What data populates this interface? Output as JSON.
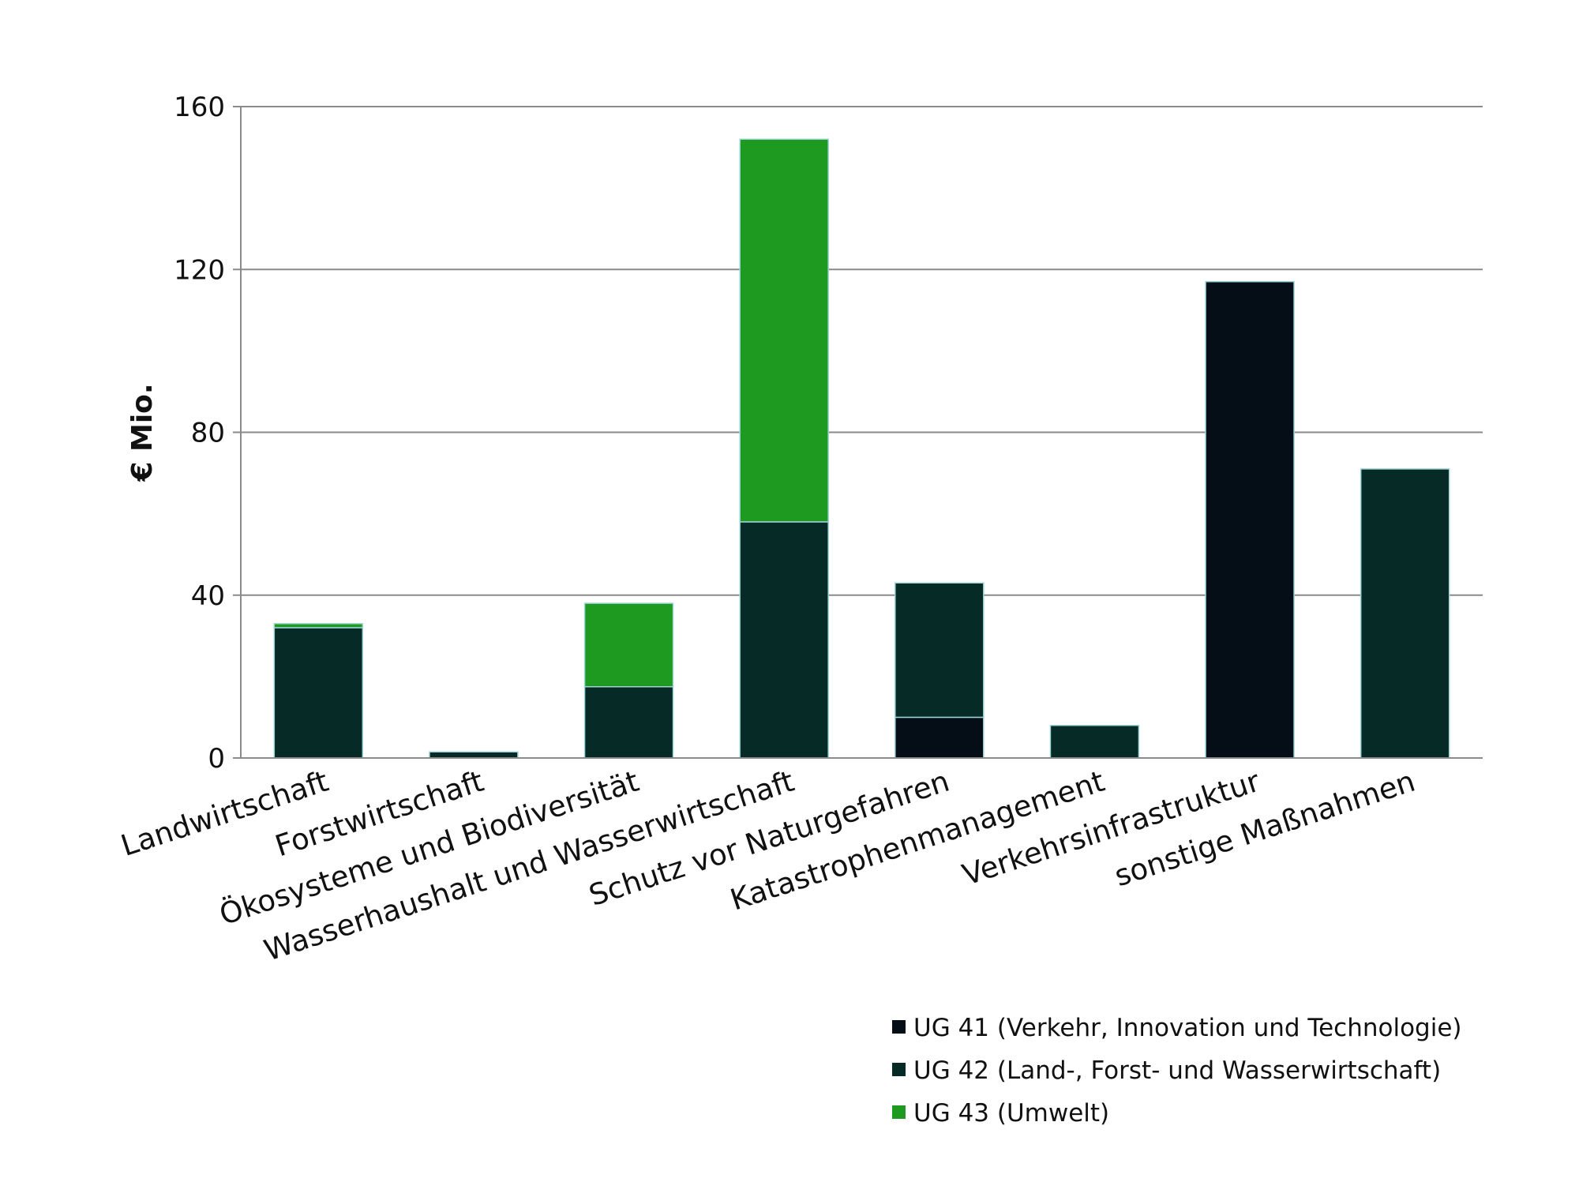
{
  "chart_data": {
    "type": "bar",
    "stacked": true,
    "ylabel": "€ Mio.",
    "xlabel": "",
    "ylim": [
      0,
      160
    ],
    "yticks": [
      "0",
      "40",
      "80",
      "120",
      "160"
    ],
    "grid": true,
    "legend_position": "bottom-right",
    "categories": [
      "Landwirtschaft",
      "Forstwirtschaft",
      "Ökosysteme und Biodiversität",
      "Wasserhaushalt und Wasserwirtschaft",
      "Schutz vor Naturgefahren",
      "Katastrophenmanagement",
      "Verkehrsinfrastruktur",
      "sonstige Maßnahmen"
    ],
    "series": [
      {
        "name": "UG 41 (Verkehr, Innovation und Technologie)",
        "color": "#050d17",
        "values": [
          0,
          0,
          0,
          0,
          10,
          0,
          117,
          0
        ]
      },
      {
        "name": "UG 42 (Land-, Forst- und Wasserwirtschaft)",
        "color": "#062a26",
        "values": [
          32,
          1.5,
          17.5,
          58,
          33,
          8,
          0,
          71
        ]
      },
      {
        "name": "UG 43 (Umwelt)",
        "color": "#1f9a20",
        "values": [
          1,
          0,
          20.5,
          94,
          0,
          0,
          0,
          0
        ]
      }
    ]
  }
}
